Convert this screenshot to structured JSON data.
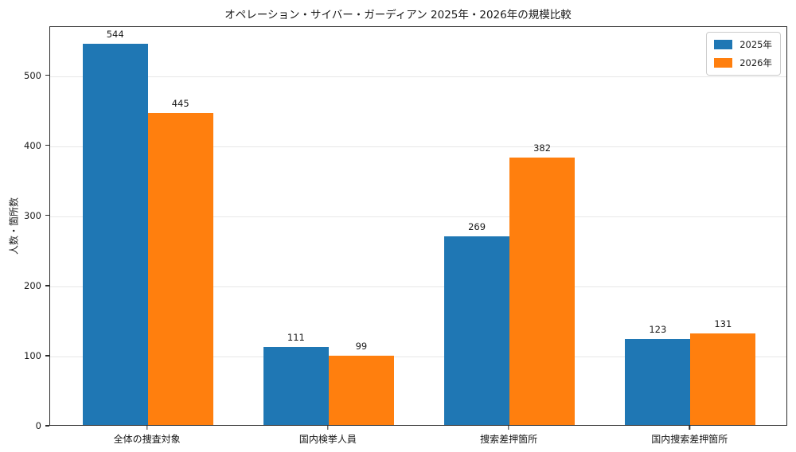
{
  "chart_data": {
    "type": "bar",
    "title": "オペレーション・サイバー・ガーディアン 2025年・2026年の規模比較",
    "xlabel": "",
    "ylabel": "人数・箇所数",
    "categories": [
      "全体の捜査対象",
      "国内検挙人員",
      "捜索差押箇所",
      "国内捜索差押箇所"
    ],
    "series": [
      {
        "name": "2025年",
        "color": "#1f77b4",
        "values": [
          544,
          111,
          269,
          123
        ]
      },
      {
        "name": "2026年",
        "color": "#ff7f0e",
        "values": [
          445,
          99,
          382,
          131
        ]
      }
    ],
    "ylim": [
      0,
      570
    ],
    "yticks": [
      0,
      100,
      200,
      300,
      400,
      500
    ],
    "grid": "horizontal-light",
    "gridline_color": "#e7e7e7",
    "spine_color": "#2b2b2b",
    "bar_value_labels": true,
    "legend": {
      "position": "upper-right",
      "entries": [
        "2025年",
        "2026年"
      ]
    }
  }
}
